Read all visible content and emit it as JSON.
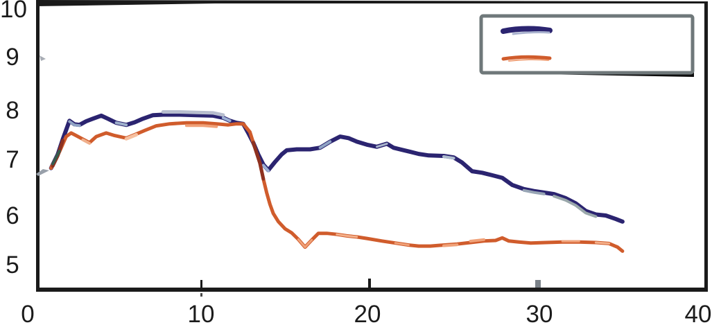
{
  "colors": {
    "background": "#ffffff",
    "axis": "#1a1a1a",
    "text": "#1b1b1b",
    "tick_dot": "#4a4a4a",
    "tick_gray": "#7b8289",
    "legend_border": "#6f787a",
    "legend_shadow": "#0d0d0d",
    "legend_fill": "#ffffff",
    "legend_navy_highlight": "#aab3cf",
    "legend_orange_highlight": "#f0a178",
    "artifact_gray": "#a9adb5",
    "start_mark_gray": "#98a0aa"
  },
  "chart_data": {
    "type": "line",
    "title": "",
    "xlabel": "",
    "ylabel": "",
    "xlim": [
      0,
      40
    ],
    "ylim": [
      4.6,
      10.2
    ],
    "grid": false,
    "x_tick_labels": [
      "0",
      "10",
      "20",
      "30",
      "40"
    ],
    "y_tick_labels": [
      "10",
      "9",
      "8",
      "7",
      "6",
      "5"
    ],
    "x_tick_values": [
      0,
      10,
      20,
      30,
      40
    ],
    "y_tick_values": [
      10,
      9,
      8,
      7,
      6,
      5
    ],
    "legend": {
      "position": "top-right",
      "items": [
        {
          "label": "",
          "color": "#2b2470",
          "name": "navy-series"
        },
        {
          "label": "",
          "color": "#d05c2c",
          "name": "orange-series"
        }
      ]
    },
    "series": [
      {
        "name": "navy",
        "color": "#2b2470",
        "stroke_width": 6,
        "points": [
          [
            0.9,
            6.93
          ],
          [
            1.0,
            7.0
          ],
          [
            1.3,
            7.2
          ],
          [
            1.6,
            7.5
          ],
          [
            2.0,
            7.86
          ],
          [
            2.3,
            7.79
          ],
          [
            2.6,
            7.78
          ],
          [
            3.0,
            7.85
          ],
          [
            3.4,
            7.9
          ],
          [
            3.9,
            7.96
          ],
          [
            4.3,
            7.9
          ],
          [
            4.8,
            7.82
          ],
          [
            5.4,
            7.78
          ],
          [
            5.9,
            7.83
          ],
          [
            6.4,
            7.9
          ],
          [
            7.0,
            7.97
          ],
          [
            7.6,
            7.98
          ],
          [
            8.6,
            7.98
          ],
          [
            9.6,
            7.97
          ],
          [
            10.6,
            7.96
          ],
          [
            11.2,
            7.92
          ],
          [
            11.6,
            7.86
          ],
          [
            12.0,
            7.82
          ],
          [
            12.4,
            7.8
          ],
          [
            12.7,
            7.62
          ],
          [
            13.0,
            7.43
          ],
          [
            13.3,
            7.2
          ],
          [
            13.6,
            7.0
          ],
          [
            13.9,
            6.89
          ],
          [
            14.3,
            7.05
          ],
          [
            14.7,
            7.2
          ],
          [
            15.0,
            7.28
          ],
          [
            15.6,
            7.3
          ],
          [
            16.4,
            7.3
          ],
          [
            17.0,
            7.33
          ],
          [
            17.6,
            7.45
          ],
          [
            18.2,
            7.55
          ],
          [
            18.7,
            7.52
          ],
          [
            19.2,
            7.45
          ],
          [
            19.8,
            7.39
          ],
          [
            20.4,
            7.35
          ],
          [
            21.0,
            7.41
          ],
          [
            21.4,
            7.33
          ],
          [
            21.9,
            7.29
          ],
          [
            22.4,
            7.25
          ],
          [
            22.9,
            7.21
          ],
          [
            23.5,
            7.18
          ],
          [
            24.4,
            7.17
          ],
          [
            25.0,
            7.14
          ],
          [
            25.5,
            7.04
          ],
          [
            26.1,
            6.87
          ],
          [
            26.7,
            6.84
          ],
          [
            27.3,
            6.79
          ],
          [
            27.9,
            6.74
          ],
          [
            28.5,
            6.6
          ],
          [
            29.2,
            6.52
          ],
          [
            29.8,
            6.48
          ],
          [
            30.4,
            6.45
          ],
          [
            31.0,
            6.42
          ],
          [
            31.7,
            6.34
          ],
          [
            32.3,
            6.24
          ],
          [
            32.9,
            6.09
          ],
          [
            33.5,
            6.02
          ],
          [
            34.1,
            6.0
          ],
          [
            34.7,
            5.93
          ],
          [
            35.1,
            5.88
          ]
        ]
      },
      {
        "name": "orange",
        "color": "#d05c2c",
        "stroke_width": 5,
        "points": [
          [
            0.9,
            6.93
          ],
          [
            1.0,
            7.0
          ],
          [
            1.4,
            7.25
          ],
          [
            1.8,
            7.55
          ],
          [
            2.1,
            7.62
          ],
          [
            2.4,
            7.57
          ],
          [
            2.8,
            7.5
          ],
          [
            3.2,
            7.43
          ],
          [
            3.6,
            7.55
          ],
          [
            4.2,
            7.62
          ],
          [
            4.7,
            7.57
          ],
          [
            5.4,
            7.52
          ],
          [
            6.0,
            7.6
          ],
          [
            6.5,
            7.67
          ],
          [
            7.2,
            7.76
          ],
          [
            8.0,
            7.8
          ],
          [
            9.0,
            7.82
          ],
          [
            10.0,
            7.82
          ],
          [
            10.8,
            7.8
          ],
          [
            11.5,
            7.78
          ],
          [
            12.0,
            7.8
          ],
          [
            12.4,
            7.8
          ],
          [
            12.8,
            7.64
          ],
          [
            13.0,
            7.43
          ],
          [
            13.2,
            7.23
          ],
          [
            13.4,
            7.03
          ],
          [
            13.6,
            6.72
          ],
          [
            13.8,
            6.45
          ],
          [
            14.0,
            6.22
          ],
          [
            14.2,
            6.04
          ],
          [
            14.5,
            5.88
          ],
          [
            14.9,
            5.74
          ],
          [
            15.3,
            5.66
          ],
          [
            15.7,
            5.53
          ],
          [
            16.1,
            5.38
          ],
          [
            16.5,
            5.52
          ],
          [
            16.9,
            5.65
          ],
          [
            17.4,
            5.65
          ],
          [
            18.0,
            5.63
          ],
          [
            18.6,
            5.6
          ],
          [
            19.2,
            5.58
          ],
          [
            19.8,
            5.55
          ],
          [
            20.7,
            5.5
          ],
          [
            21.5,
            5.46
          ],
          [
            22.3,
            5.42
          ],
          [
            22.9,
            5.4
          ],
          [
            23.6,
            5.4
          ],
          [
            24.4,
            5.42
          ],
          [
            25.2,
            5.44
          ],
          [
            26.0,
            5.47
          ],
          [
            26.8,
            5.5
          ],
          [
            27.5,
            5.51
          ],
          [
            27.9,
            5.56
          ],
          [
            28.3,
            5.5
          ],
          [
            28.9,
            5.48
          ],
          [
            29.6,
            5.46
          ],
          [
            30.5,
            5.47
          ],
          [
            31.5,
            5.48
          ],
          [
            32.5,
            5.48
          ],
          [
            33.5,
            5.47
          ],
          [
            34.3,
            5.45
          ],
          [
            34.8,
            5.38
          ],
          [
            35.1,
            5.3
          ]
        ]
      }
    ],
    "trace_highlights": [
      {
        "series": 0,
        "x0": 1.0,
        "x1": 1.9,
        "color": "#8e3120",
        "width": 5,
        "dy": 2
      },
      {
        "series": 0,
        "x0": 2.0,
        "x1": 2.65,
        "color": "#8fa3c4",
        "width": 4,
        "dy": 1
      },
      {
        "series": 0,
        "x0": 4.7,
        "x1": 5.5,
        "color": "#9fb0cc",
        "width": 4,
        "dy": 0
      },
      {
        "series": 0,
        "x0": 7.3,
        "x1": 11.25,
        "color": "#b7bdce",
        "width": 5,
        "dy": -4
      },
      {
        "series": 0,
        "x0": 11.1,
        "x1": 11.7,
        "color": "#9db0d4",
        "width": 4,
        "dy": 0
      },
      {
        "series": 0,
        "x0": 13.55,
        "x1": 14.2,
        "color": "#9db0d4",
        "width": 4,
        "dy": 1
      },
      {
        "series": 0,
        "x0": 16.9,
        "x1": 17.7,
        "color": "#8fa3c4",
        "width": 4,
        "dy": 0
      },
      {
        "series": 0,
        "x0": 20.3,
        "x1": 21.1,
        "color": "#a9b4cc",
        "width": 3,
        "dy": 0
      },
      {
        "series": 0,
        "x0": 24.3,
        "x1": 25.1,
        "color": "#aebccf",
        "width": 4,
        "dy": 1
      },
      {
        "series": 0,
        "x0": 29.1,
        "x1": 30.5,
        "color": "#98a5b5",
        "width": 4,
        "dy": 2
      },
      {
        "series": 0,
        "x0": 30.6,
        "x1": 33.9,
        "color": "#9aa8ab",
        "width": 4,
        "dy": 3
      },
      {
        "series": 1,
        "x0": 0.95,
        "x1": 1.45,
        "color": "#355c4e",
        "width": 4,
        "dy": -1
      },
      {
        "series": 1,
        "x0": 2.7,
        "x1": 3.4,
        "color": "#f0b08c",
        "width": 4,
        "dy": 1
      },
      {
        "series": 1,
        "x0": 5.2,
        "x1": 6.1,
        "color": "#f6c0a0",
        "width": 5,
        "dy": 1
      },
      {
        "series": 1,
        "x0": 8.4,
        "x1": 10.9,
        "color": "#f0a178",
        "width": 4,
        "dy": 4
      },
      {
        "series": 1,
        "x0": 12.9,
        "x1": 13.65,
        "color": "#8e3120",
        "width": 5,
        "dy": 0
      },
      {
        "series": 1,
        "x0": 15.6,
        "x1": 16.6,
        "color": "#f0a178",
        "width": 3,
        "dy": 0
      },
      {
        "series": 1,
        "x0": 17.9,
        "x1": 19.3,
        "color": "#f4b08a",
        "width": 3,
        "dy": 0
      },
      {
        "series": 1,
        "x0": 21.4,
        "x1": 22.4,
        "color": "#f0a178",
        "width": 3,
        "dy": 0
      },
      {
        "series": 1,
        "x0": 24.2,
        "x1": 25.3,
        "color": "#f0a178",
        "width": 4,
        "dy": 1
      },
      {
        "series": 1,
        "x0": 25.9,
        "x1": 27.4,
        "color": "#f0a178",
        "width": 4,
        "dy": -2
      },
      {
        "series": 1,
        "x0": 31.0,
        "x1": 32.6,
        "color": "#f0a178",
        "width": 3,
        "dy": -1
      },
      {
        "series": 1,
        "x0": 33.3,
        "x1": 34.4,
        "color": "#f4b08a",
        "width": 3,
        "dy": 0
      }
    ]
  }
}
